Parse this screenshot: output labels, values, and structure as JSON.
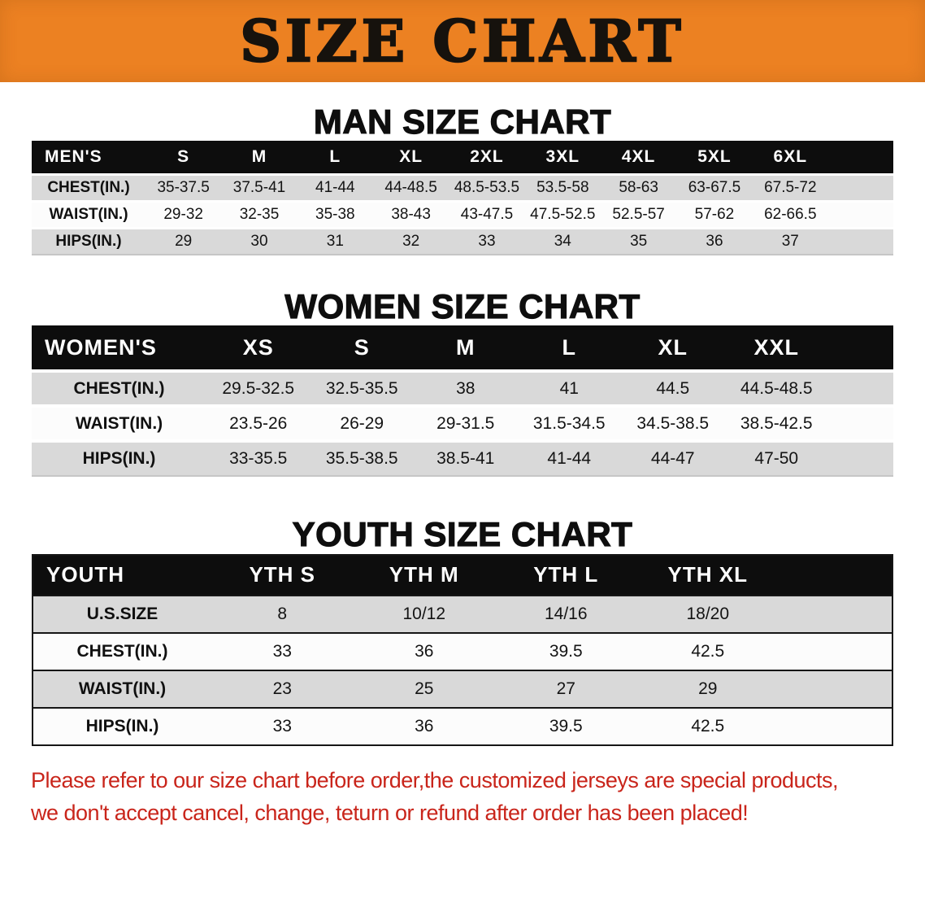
{
  "theme": {
    "banner_bg": "#ec8122",
    "title_color": "#16120d",
    "heading_color": "#0e0e0e",
    "table_header_bg": "#0d0d0d",
    "row_stripe": "#d9d9d9",
    "row_plain": "#fcfcfc",
    "disclaimer_color": "#c9251b"
  },
  "banner": {
    "title": "SIZE CHART"
  },
  "men": {
    "heading": "MAN SIZE CHART",
    "table": {
      "title": "MEN'S",
      "columns": [
        "S",
        "M",
        "L",
        "XL",
        "2XL",
        "3XL",
        "4XL",
        "5XL",
        "6XL"
      ],
      "rows": [
        {
          "label": "CHEST(IN.)",
          "values": [
            "35-37.5",
            "37.5-41",
            "41-44",
            "44-48.5",
            "48.5-53.5",
            "53.5-58",
            "58-63",
            "63-67.5",
            "67.5-72"
          ]
        },
        {
          "label": "WAIST(IN.)",
          "values": [
            "29-32",
            "32-35",
            "35-38",
            "38-43",
            "43-47.5",
            "47.5-52.5",
            "52.5-57",
            "57-62",
            "62-66.5"
          ]
        },
        {
          "label": "HIPS(IN.)",
          "values": [
            "29",
            "30",
            "31",
            "32",
            "33",
            "34",
            "35",
            "36",
            "37"
          ]
        }
      ]
    }
  },
  "women": {
    "heading": "WOMEN SIZE CHART",
    "table": {
      "title": "WOMEN'S",
      "columns": [
        "XS",
        "S",
        "M",
        "L",
        "XL",
        "XXL"
      ],
      "rows": [
        {
          "label": "CHEST(IN.)",
          "values": [
            "29.5-32.5",
            "32.5-35.5",
            "38",
            "41",
            "44.5",
            "44.5-48.5"
          ]
        },
        {
          "label": "WAIST(IN.)",
          "values": [
            "23.5-26",
            "26-29",
            "29-31.5",
            "31.5-34.5",
            "34.5-38.5",
            "38.5-42.5"
          ]
        },
        {
          "label": "HIPS(IN.)",
          "values": [
            "33-35.5",
            "35.5-38.5",
            "38.5-41",
            "41-44",
            "44-47",
            "47-50"
          ]
        }
      ]
    }
  },
  "youth": {
    "heading": "YOUTH SIZE CHART",
    "table": {
      "title": "YOUTH",
      "columns": [
        "YTH S",
        "YTH M",
        "YTH L",
        "YTH XL"
      ],
      "rows": [
        {
          "label": "U.S.SIZE",
          "values": [
            "8",
            "10/12",
            "14/16",
            "18/20"
          ]
        },
        {
          "label": "CHEST(IN.)",
          "values": [
            "33",
            "36",
            "39.5",
            "42.5"
          ]
        },
        {
          "label": "WAIST(IN.)",
          "values": [
            "23",
            "25",
            "27",
            "29"
          ]
        },
        {
          "label": "HIPS(IN.)",
          "values": [
            "33",
            "36",
            "39.5",
            "42.5"
          ]
        }
      ]
    }
  },
  "disclaimer": {
    "line1": "Please refer to our size chart before order,the customized jerseys are special products,",
    "line2": "we don't accept cancel, change, teturn or refund after order has been placed!"
  }
}
